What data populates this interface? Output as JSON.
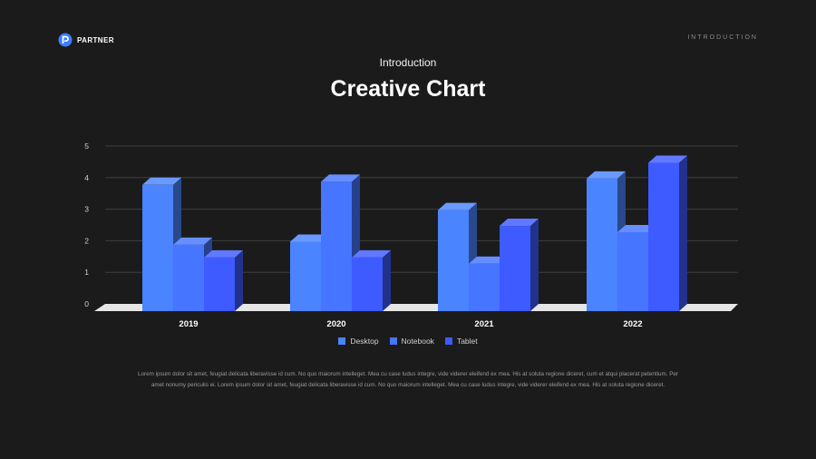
{
  "brand": {
    "name": "PARTNER"
  },
  "header": {
    "nav_label": "INTRODUCTION"
  },
  "slide": {
    "subtitle": "Introduction",
    "title": "Creative Chart",
    "body": "Lorem ipsum dolor sit amet, feugiat delicata liberavisse id cum. No quo maiorum intelleget. Mea cu case ludus integre, vide viderer eleifend ex mea. His at soluta regione diceret, cum et atqui placerat petentium. Per amet nonumy periculis ei. Lorem ipsum dolor sit amet, feugiat delicata liberavisse id cum. No quo maiorum intelleget. Mea cu case ludus integre, vide viderer eleifend ex mea. His at soluta regione diceret."
  },
  "colors": {
    "background": "#1b1b1b",
    "accent": "#3d7eff",
    "floor": "#e6e6e6"
  },
  "chart_data": {
    "type": "bar",
    "style": "3d-clustered-column",
    "categories": [
      "2019",
      "2020",
      "2021",
      "2022"
    ],
    "series": [
      {
        "name": "Desktop",
        "color": "#4a84ff",
        "values": [
          4.0,
          2.2,
          3.2,
          4.2
        ]
      },
      {
        "name": "Notebook",
        "color": "#4675ff",
        "values": [
          2.1,
          4.1,
          1.5,
          2.5
        ]
      },
      {
        "name": "Tablet",
        "color": "#3d5bff",
        "values": [
          1.7,
          1.7,
          2.7,
          4.7
        ]
      }
    ],
    "yticks": [
      "0",
      "1",
      "2",
      "3",
      "4",
      "5"
    ],
    "ylim": [
      0,
      5
    ],
    "grid": true,
    "legend": "bottom"
  }
}
